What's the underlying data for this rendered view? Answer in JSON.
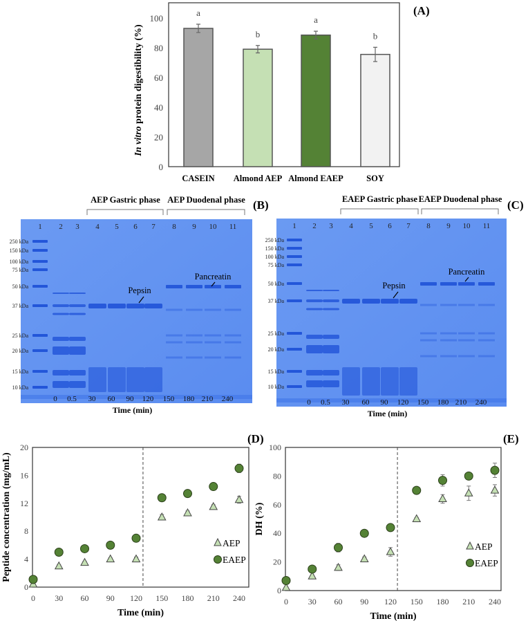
{
  "panel_labels": {
    "a": "(A)",
    "b": "(B)",
    "c": "(C)",
    "d": "(D)",
    "e": "(E)"
  },
  "colors": {
    "casein": "#a6a6a6",
    "almond_aep": "#c5e0b4",
    "almond_eaep": "#548235",
    "soy": "#f2f2f2",
    "gel": "#5b8ff0",
    "band": "#1c4fd6",
    "aep_marker": "#c5e0b4",
    "eaep_marker": "#548235"
  },
  "chart_data": [
    {
      "type": "bar",
      "title": "",
      "ylabel_italic": "In vitro",
      "ylabel_rest": " protein digestibility (%)",
      "ylim": [
        0,
        100
      ],
      "yticks": [
        "0",
        "20",
        "40",
        "60",
        "80",
        "100"
      ],
      "categories": [
        "CASEIN",
        "Almond AEP",
        "Almond EAEP",
        "SOY"
      ],
      "values": [
        93,
        79,
        88.5,
        75.5
      ],
      "errors": [
        2.8,
        2.5,
        2.6,
        4.8
      ],
      "letters": [
        "a",
        "b",
        "a",
        "b"
      ],
      "grid": false
    },
    {
      "type": "scatter",
      "xlabel": "Time (min)",
      "ylabel": "Peptide concentration (mg/mL)",
      "xlim": [
        0,
        240
      ],
      "ylim": [
        0,
        20
      ],
      "xticks": [
        "0",
        "30",
        "60",
        "90",
        "120",
        "150",
        "180",
        "210",
        "240"
      ],
      "yticks": [
        "0",
        "4",
        "8",
        "12",
        "16",
        "20"
      ],
      "phase_boundary_x": 128,
      "legend_position": "bottom-right",
      "x": [
        0,
        30,
        60,
        90,
        120,
        150,
        180,
        210,
        240
      ],
      "series": [
        {
          "name": "AEP",
          "marker": "triangle",
          "values": [
            0.4,
            3.0,
            3.5,
            4.0,
            4.0,
            10.0,
            10.6,
            11.5,
            12.5
          ],
          "errors": [
            0.1,
            0.2,
            0.2,
            0.2,
            0.3,
            0.4,
            0.3,
            0.3,
            0.5
          ]
        },
        {
          "name": "EAEP",
          "marker": "circle",
          "values": [
            1.1,
            5.0,
            5.5,
            6.0,
            7.0,
            12.8,
            13.4,
            14.4,
            17.0
          ],
          "errors": [
            0.1,
            0.2,
            0.2,
            0.2,
            0.2,
            0.3,
            0.5,
            0.4,
            0.6
          ]
        }
      ]
    },
    {
      "type": "scatter",
      "xlabel": "Time (min)",
      "ylabel": "DH (%)",
      "xlim": [
        0,
        240
      ],
      "ylim": [
        0,
        100
      ],
      "xticks": [
        "0",
        "30",
        "60",
        "90",
        "120",
        "150",
        "180",
        "210",
        "240"
      ],
      "yticks": [
        "0",
        "20",
        "40",
        "60",
        "80",
        "100"
      ],
      "phase_boundary_x": 128,
      "legend_position": "bottom-right",
      "x": [
        0,
        30,
        60,
        90,
        120,
        150,
        180,
        210,
        240
      ],
      "series": [
        {
          "name": "AEP",
          "marker": "triangle",
          "values": [
            2,
            10,
            16,
            22,
            27,
            50,
            64,
            68,
            70
          ],
          "errors": [
            0.5,
            1,
            2,
            1.5,
            3,
            1,
            3,
            5,
            4
          ]
        },
        {
          "name": "EAEP",
          "marker": "circle",
          "values": [
            7,
            15,
            30,
            40,
            44,
            70,
            77,
            80,
            84
          ],
          "errors": [
            0.5,
            1,
            3,
            1,
            1,
            1,
            4,
            1,
            5
          ]
        }
      ]
    }
  ],
  "gels": [
    {
      "gastric_label": "AEP Gastric phase",
      "duodenal_label": "AEP Duodenal phase",
      "lanes": [
        "1",
        "2",
        "3",
        "4",
        "5",
        "6",
        "7",
        "8",
        "9",
        "10",
        "11"
      ],
      "markers": [
        "250 kDa",
        "150 kDa",
        "100 kDa",
        "75 kDa",
        "50 kDa",
        "37 kDa",
        "25 kDa",
        "20 kDa",
        "15 kDa",
        "10 kDa"
      ],
      "times": [
        "0",
        "0.5",
        "30",
        "60",
        "90",
        "120",
        "150",
        "180",
        "210",
        "240"
      ],
      "xlabel": "Time (min)",
      "pepsin": "Pepsin",
      "pancreatin": "Pancreatin"
    },
    {
      "gastric_label": "EAEP Gastric phase",
      "duodenal_label": "EAEP Duodenal phase",
      "lanes": [
        "1",
        "2",
        "3",
        "4",
        "5",
        "6",
        "7",
        "8",
        "9",
        "10",
        "11"
      ],
      "markers": [
        "250 kDa",
        "150 kDa",
        "100 kDa",
        "75 kDa",
        "50 kDa",
        "37 kDa",
        "25 kDa",
        "20 kDa",
        "15 kDa",
        "10 kDa"
      ],
      "times": [
        "0",
        "0.5",
        "30",
        "60",
        "90",
        "120",
        "150",
        "180",
        "210",
        "240"
      ],
      "xlabel": "Time (min)",
      "pepsin": "Pepsin",
      "pancreatin": "Pancreatin"
    }
  ]
}
